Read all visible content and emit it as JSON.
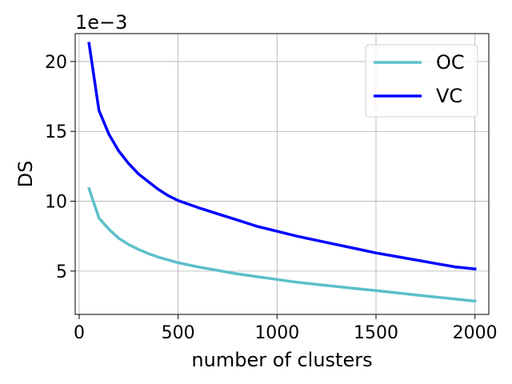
{
  "chart_data": {
    "type": "line",
    "title": "",
    "xlabel": "number of clusters",
    "ylabel": "DS",
    "offset_text": "1e−3",
    "xlim": [
      -20,
      2070
    ],
    "ylim": [
      1.9,
      22.0
    ],
    "xticks": [
      0,
      500,
      1000,
      1500,
      2000
    ],
    "xtick_labels": [
      "0",
      "500",
      "1000",
      "1500",
      "2000"
    ],
    "yticks": [
      5,
      10,
      15,
      20
    ],
    "ytick_labels": [
      "5",
      "10",
      "15",
      "20"
    ],
    "grid": true,
    "legend_position": "top-right",
    "series": [
      {
        "name": "OC",
        "color": "#5bbfca",
        "x": [
          50,
          100,
          150,
          200,
          250,
          300,
          350,
          400,
          450,
          500,
          600,
          700,
          800,
          900,
          1000,
          1100,
          1200,
          1300,
          1400,
          1500,
          1600,
          1700,
          1800,
          1900,
          2000
        ],
        "values": [
          10.9,
          8.8,
          8.0,
          7.35,
          6.9,
          6.55,
          6.25,
          6.0,
          5.8,
          5.6,
          5.3,
          5.05,
          4.8,
          4.6,
          4.4,
          4.2,
          4.05,
          3.9,
          3.75,
          3.6,
          3.45,
          3.3,
          3.15,
          3.0,
          2.85
        ]
      },
      {
        "name": "VC",
        "color": "#0000ff",
        "x": [
          50,
          100,
          150,
          200,
          250,
          300,
          350,
          400,
          450,
          500,
          600,
          700,
          800,
          900,
          1000,
          1100,
          1200,
          1300,
          1400,
          1500,
          1600,
          1700,
          1800,
          1900,
          2000
        ],
        "values": [
          21.3,
          16.5,
          14.8,
          13.6,
          12.7,
          11.95,
          11.4,
          10.85,
          10.4,
          10.05,
          9.55,
          9.1,
          8.65,
          8.2,
          7.85,
          7.5,
          7.2,
          6.9,
          6.6,
          6.3,
          6.05,
          5.8,
          5.55,
          5.3,
          5.15
        ]
      }
    ]
  }
}
